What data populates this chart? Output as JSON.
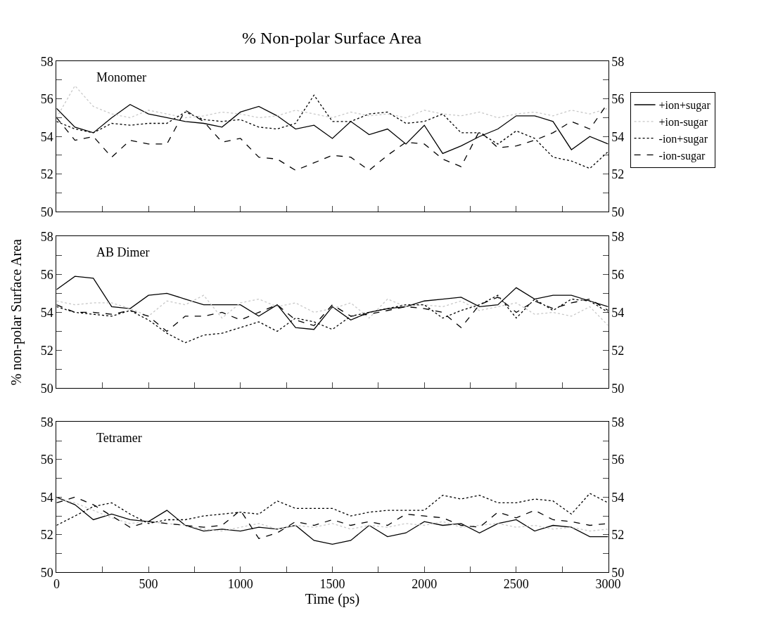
{
  "chart_data": [
    {
      "type": "line",
      "title": "% Non-polar Surface Area",
      "annotations": [
        "Monomer"
      ],
      "legend": "right",
      "tick_labels": "y",
      "x": [
        0,
        100,
        200,
        300,
        400,
        500,
        600,
        700,
        800,
        900,
        1000,
        1100,
        1200,
        1300,
        1400,
        1500,
        1600,
        1700,
        1800,
        1900,
        2000,
        2100,
        2200,
        2300,
        2400,
        2500,
        2600,
        2700,
        2800,
        2900,
        3000
      ],
      "xlim": [
        0,
        3000
      ],
      "xticks": [
        {
          "value": 0,
          "label": null
        },
        {
          "value": 250,
          "label": null
        },
        {
          "value": 500,
          "label": null
        },
        {
          "value": 750,
          "label": null
        },
        {
          "value": 1000,
          "label": null
        },
        {
          "value": 1250,
          "label": null
        },
        {
          "value": 1500,
          "label": null
        },
        {
          "value": 1750,
          "label": null
        },
        {
          "value": 2000,
          "label": null
        },
        {
          "value": 2250,
          "label": null
        },
        {
          "value": 2500,
          "label": null
        },
        {
          "value": 2750,
          "label": null
        },
        {
          "value": 3000,
          "label": null
        }
      ],
      "ylim": [
        50,
        58
      ],
      "yticks": [
        50,
        {
          "value": 51,
          "label": null
        },
        52,
        {
          "value": 53,
          "label": null
        },
        54,
        {
          "value": 55,
          "label": null
        },
        56,
        {
          "value": 57,
          "label": null
        },
        58
      ],
      "y2lim": [
        50,
        58
      ],
      "y2ticks": [
        50,
        {
          "value": 51,
          "label": null
        },
        52,
        {
          "value": 53,
          "label": null
        },
        54,
        {
          "value": 55,
          "label": null
        },
        56,
        {
          "value": 57,
          "label": null
        },
        58
      ],
      "series": [
        {
          "name": "+ion+sugar",
          "color": "#000000",
          "line_style": "solid",
          "values": [
            55.5,
            54.5,
            54.2,
            55.0,
            55.7,
            55.2,
            55.0,
            54.8,
            54.7,
            54.5,
            55.3,
            55.6,
            55.1,
            54.4,
            54.6,
            53.9,
            54.8,
            54.1,
            54.4,
            53.6,
            54.6,
            53.1,
            53.5,
            54.0,
            54.4,
            55.1,
            55.1,
            54.8,
            53.3,
            54.0,
            53.6
          ]
        },
        {
          "name": "+ion-sugar",
          "color": "#c8c8c8",
          "line_style": "dotted",
          "values": [
            55.0,
            56.7,
            55.6,
            55.2,
            55.0,
            55.4,
            55.2,
            55.0,
            55.1,
            55.3,
            55.2,
            55.0,
            55.1,
            55.4,
            55.2,
            55.0,
            55.3,
            55.1,
            55.2,
            55.0,
            55.4,
            55.2,
            55.1,
            55.3,
            55.0,
            55.2,
            55.3,
            55.1,
            55.4,
            55.2,
            55.5
          ]
        },
        {
          "name": "-ion+sugar",
          "color": "#000000",
          "line_style": "dotted",
          "values": [
            54.8,
            54.4,
            54.2,
            54.7,
            54.6,
            54.7,
            54.7,
            55.3,
            54.9,
            54.8,
            54.9,
            54.5,
            54.4,
            54.7,
            56.2,
            54.8,
            54.8,
            55.2,
            55.3,
            54.7,
            54.8,
            55.2,
            54.2,
            54.2,
            53.6,
            54.3,
            53.9,
            52.9,
            52.7,
            52.3,
            53.2
          ]
        },
        {
          "name": "-ion-sugar",
          "color": "#000000",
          "line_style": "dashed",
          "values": [
            55.0,
            53.8,
            54.0,
            52.9,
            53.8,
            53.6,
            53.6,
            55.4,
            54.8,
            53.7,
            53.9,
            52.9,
            52.8,
            52.2,
            52.6,
            53.0,
            52.9,
            52.2,
            53.0,
            53.7,
            53.6,
            52.8,
            52.4,
            54.3,
            53.4,
            53.5,
            53.8,
            54.2,
            54.8,
            54.4,
            55.8
          ]
        }
      ]
    },
    {
      "type": "line",
      "annotations": [
        "AB Dimer"
      ],
      "ylabel": "% non-polar Surface Area",
      "tick_labels": "y",
      "x": [
        0,
        100,
        200,
        300,
        400,
        500,
        600,
        700,
        800,
        900,
        1000,
        1100,
        1200,
        1300,
        1400,
        1500,
        1600,
        1700,
        1800,
        1900,
        2000,
        2100,
        2200,
        2300,
        2400,
        2500,
        2600,
        2700,
        2800,
        2900,
        3000
      ],
      "xlim": [
        0,
        3000
      ],
      "xticks": [
        {
          "value": 0,
          "label": null
        },
        {
          "value": 250,
          "label": null
        },
        {
          "value": 500,
          "label": null
        },
        {
          "value": 750,
          "label": null
        },
        {
          "value": 1000,
          "label": null
        },
        {
          "value": 1250,
          "label": null
        },
        {
          "value": 1500,
          "label": null
        },
        {
          "value": 1750,
          "label": null
        },
        {
          "value": 2000,
          "label": null
        },
        {
          "value": 2250,
          "label": null
        },
        {
          "value": 2500,
          "label": null
        },
        {
          "value": 2750,
          "label": null
        },
        {
          "value": 3000,
          "label": null
        }
      ],
      "ylim": [
        50,
        58
      ],
      "yticks": [
        50,
        {
          "value": 51,
          "label": null
        },
        52,
        {
          "value": 53,
          "label": null
        },
        54,
        {
          "value": 55,
          "label": null
        },
        56,
        {
          "value": 57,
          "label": null
        },
        58
      ],
      "y2lim": [
        50,
        58
      ],
      "y2ticks": [
        50,
        {
          "value": 51,
          "label": null
        },
        52,
        {
          "value": 53,
          "label": null
        },
        54,
        {
          "value": 55,
          "label": null
        },
        56,
        {
          "value": 57,
          "label": null
        },
        58
      ],
      "series": [
        {
          "color": "#000000",
          "line_style": "solid",
          "values": [
            55.2,
            55.9,
            55.8,
            54.3,
            54.2,
            54.9,
            55.0,
            54.7,
            54.4,
            54.4,
            54.4,
            53.8,
            54.4,
            53.2,
            53.1,
            54.3,
            53.6,
            54.0,
            54.2,
            54.3,
            54.6,
            54.7,
            54.8,
            54.3,
            54.4,
            55.3,
            54.7,
            54.9,
            54.9,
            54.6,
            54.3
          ]
        },
        {
          "color": "#c8c8c8",
          "line_style": "dotted",
          "values": [
            54.6,
            54.4,
            54.5,
            54.5,
            54.2,
            53.8,
            54.6,
            54.4,
            54.9,
            53.7,
            54.5,
            54.7,
            54.3,
            54.5,
            54.0,
            54.2,
            54.5,
            53.7,
            54.7,
            54.3,
            54.4,
            54.3,
            54.6,
            54.1,
            54.3,
            54.5,
            53.9,
            54.0,
            53.8,
            54.3,
            53.3
          ]
        },
        {
          "color": "#000000",
          "line_style": "dotted",
          "values": [
            54.3,
            54.0,
            53.9,
            53.8,
            54.1,
            53.6,
            52.9,
            52.4,
            52.8,
            52.9,
            53.2,
            53.5,
            53.0,
            53.7,
            53.5,
            53.1,
            53.8,
            54.0,
            54.2,
            54.4,
            54.4,
            53.7,
            54.1,
            54.4,
            54.9,
            53.7,
            54.7,
            54.1,
            54.7,
            54.6,
            54.0
          ]
        },
        {
          "color": "#000000",
          "line_style": "dashed",
          "values": [
            54.4,
            54.0,
            54.0,
            53.9,
            54.1,
            53.8,
            53.0,
            53.8,
            53.8,
            54.0,
            53.6,
            54.0,
            54.4,
            53.6,
            53.3,
            54.4,
            53.8,
            53.9,
            54.1,
            54.3,
            54.2,
            54.0,
            53.2,
            54.4,
            54.8,
            54.0,
            54.6,
            54.2,
            54.5,
            54.7,
            54.1
          ]
        }
      ]
    },
    {
      "type": "line",
      "annotations": [
        "Tetramer"
      ],
      "xlabel": "Time (ps)",
      "x": [
        0,
        100,
        200,
        300,
        400,
        500,
        600,
        700,
        800,
        900,
        1000,
        1100,
        1200,
        1300,
        1400,
        1500,
        1600,
        1700,
        1800,
        1900,
        2000,
        2100,
        2200,
        2300,
        2400,
        2500,
        2600,
        2700,
        2800,
        2900,
        3000
      ],
      "xlim": [
        0,
        3000
      ],
      "xticks": [
        0,
        {
          "value": 250,
          "label": null
        },
        500,
        {
          "value": 750,
          "label": null
        },
        1000,
        {
          "value": 1250,
          "label": null
        },
        1500,
        {
          "value": 1750,
          "label": null
        },
        2000,
        {
          "value": 2250,
          "label": null
        },
        2500,
        {
          "value": 2750,
          "label": null
        },
        3000
      ],
      "ylim": [
        50,
        58
      ],
      "yticks": [
        50,
        {
          "value": 51,
          "label": null
        },
        52,
        {
          "value": 53,
          "label": null
        },
        54,
        {
          "value": 55,
          "label": null
        },
        56,
        {
          "value": 57,
          "label": null
        },
        58
      ],
      "y2lim": [
        50,
        58
      ],
      "y2ticks": [
        50,
        {
          "value": 51,
          "label": null
        },
        52,
        {
          "value": 53,
          "label": null
        },
        54,
        {
          "value": 55,
          "label": null
        },
        56,
        {
          "value": 57,
          "label": null
        },
        58
      ],
      "series": [
        {
          "color": "#000000",
          "line_style": "solid",
          "values": [
            54.0,
            53.6,
            52.8,
            53.1,
            52.8,
            52.7,
            53.3,
            52.5,
            52.2,
            52.3,
            52.2,
            52.4,
            52.3,
            52.5,
            51.7,
            51.5,
            51.7,
            52.5,
            51.9,
            52.1,
            52.7,
            52.5,
            52.6,
            52.1,
            52.6,
            52.8,
            52.2,
            52.5,
            52.4,
            51.9,
            51.9
          ]
        },
        {
          "color": "#c8c8c8",
          "line_style": "dotted",
          "values": [
            53.9,
            53.7,
            53.3,
            52.9,
            52.6,
            52.7,
            52.6,
            52.5,
            52.3,
            52.2,
            52.4,
            52.6,
            52.3,
            52.5,
            52.4,
            52.6,
            52.3,
            52.5,
            52.4,
            52.6,
            52.5,
            52.7,
            52.4,
            52.5,
            52.6,
            52.4,
            52.5,
            52.3,
            52.4,
            52.2,
            52.3
          ]
        },
        {
          "color": "#000000",
          "line_style": "dotted",
          "values": [
            52.5,
            53.0,
            53.5,
            53.7,
            53.1,
            52.6,
            52.8,
            52.8,
            53.0,
            53.1,
            53.2,
            53.1,
            53.8,
            53.4,
            53.4,
            53.4,
            53.0,
            53.2,
            53.3,
            53.3,
            53.3,
            54.1,
            53.9,
            54.1,
            53.7,
            53.7,
            53.9,
            53.8,
            53.1,
            54.2,
            53.7
          ]
        },
        {
          "color": "#000000",
          "line_style": "dashed",
          "values": [
            53.7,
            54.0,
            53.6,
            53.0,
            52.4,
            52.7,
            52.6,
            52.5,
            52.4,
            52.5,
            53.3,
            51.8,
            52.1,
            52.7,
            52.5,
            52.8,
            52.5,
            52.7,
            52.5,
            53.1,
            53.0,
            52.9,
            52.5,
            52.4,
            53.2,
            52.9,
            53.3,
            52.8,
            52.7,
            52.5,
            52.6
          ]
        }
      ]
    }
  ]
}
